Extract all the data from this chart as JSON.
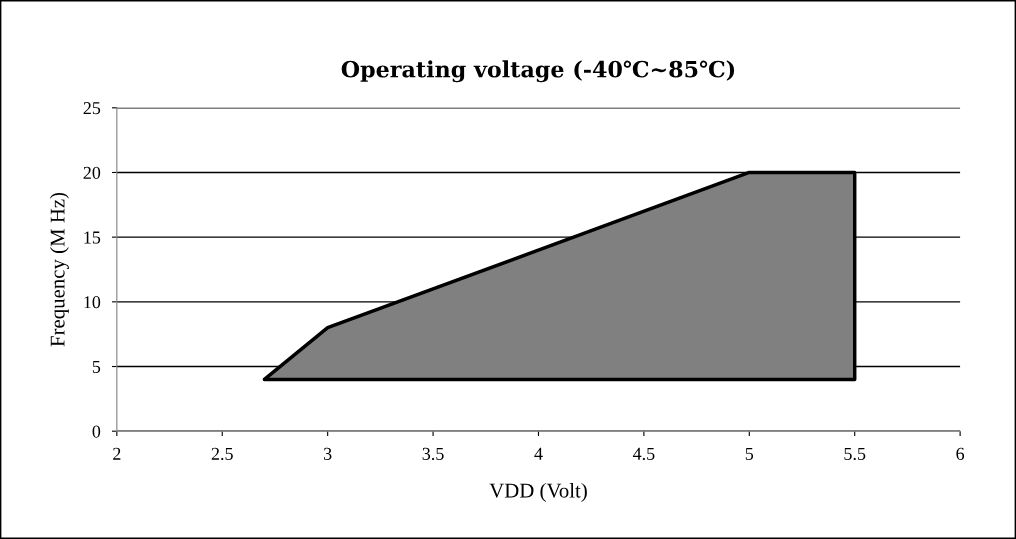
{
  "chart_data": {
    "type": "area",
    "title": "Operating voltage (-40℃~85℃)",
    "xlabel": "VDD (Volt)",
    "ylabel": "Frequency (M Hz)",
    "x": [
      2.7,
      3,
      5,
      5.5,
      5.5,
      2.7
    ],
    "series": [
      {
        "color": "#808080",
        "values": [
          4,
          8,
          20,
          20,
          4,
          4
        ]
      }
    ],
    "xlim": [
      2,
      6
    ],
    "xticks": [
      2,
      2.5,
      3,
      3.5,
      4,
      4.5,
      5,
      5.5,
      6
    ],
    "ylim": [
      0,
      25
    ],
    "yticks": [
      0,
      5,
      10,
      15,
      20,
      25
    ],
    "grid": "y"
  }
}
